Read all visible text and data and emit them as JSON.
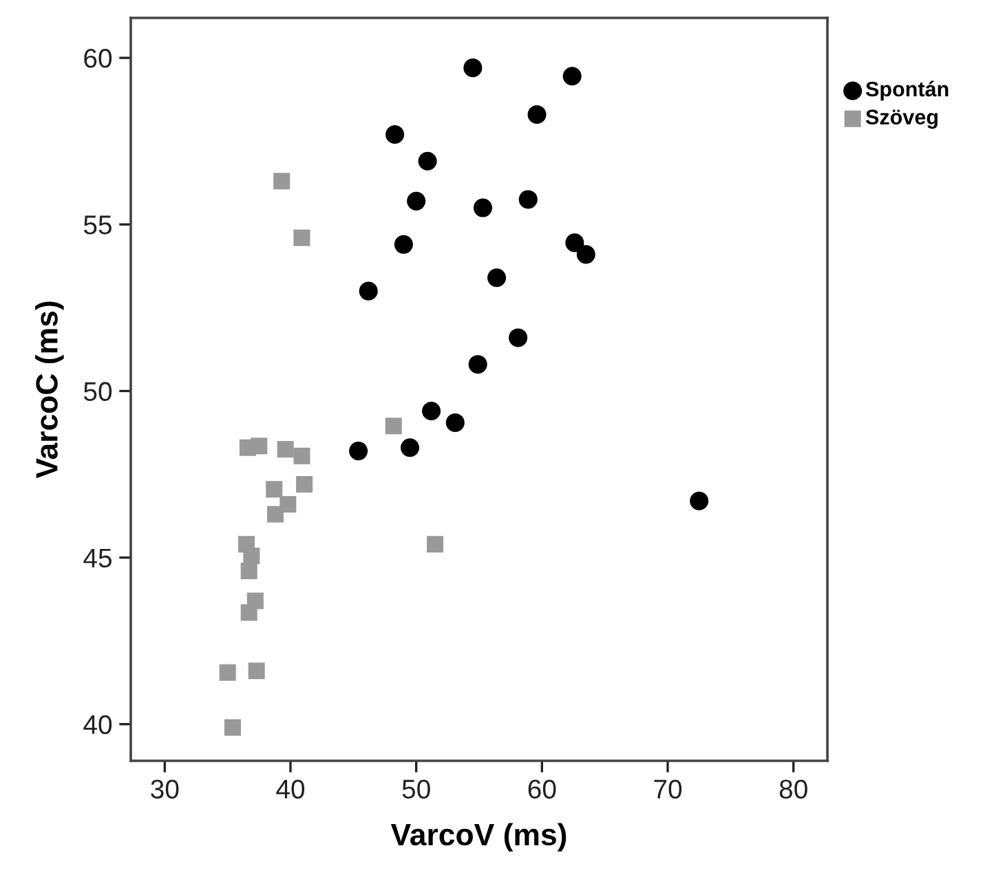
{
  "chart_data": {
    "type": "scatter",
    "xlabel": "VarcoV (ms)",
    "ylabel": "VarcoC (ms)",
    "xlim": [
      27.3,
      82.7
    ],
    "ylim": [
      38.9,
      61.2
    ],
    "xticks": [
      30,
      40,
      50,
      60,
      70,
      80
    ],
    "yticks": [
      40,
      45,
      50,
      55,
      60
    ],
    "grid": false,
    "legend": "top right",
    "series": [
      {
        "name": "Spontán",
        "color": "#000000",
        "marker": "circle",
        "x": [
          54.5,
          62.4,
          59.6,
          48.3,
          50.9,
          50.0,
          55.3,
          58.9,
          49.0,
          62.6,
          63.5,
          56.4,
          46.2,
          58.1,
          54.9,
          51.2,
          53.1,
          45.4,
          49.5,
          72.5
        ],
        "values": [
          59.7,
          59.45,
          58.3,
          57.7,
          56.9,
          55.7,
          55.5,
          55.75,
          54.4,
          54.45,
          54.1,
          53.4,
          53.0,
          51.6,
          50.8,
          49.4,
          49.05,
          48.2,
          48.3,
          46.7
        ]
      },
      {
        "name": "Szöveg",
        "color": "#999999",
        "marker": "square",
        "x": [
          39.3,
          40.9,
          48.2,
          36.6,
          37.5,
          39.6,
          40.9,
          38.7,
          41.1,
          39.8,
          38.8,
          36.5,
          36.9,
          36.7,
          51.5,
          37.2,
          36.7,
          35.0,
          37.3,
          35.4
        ],
        "values": [
          56.3,
          54.6,
          48.95,
          48.3,
          48.35,
          48.25,
          48.05,
          47.05,
          47.2,
          46.6,
          46.3,
          45.4,
          45.05,
          44.6,
          45.4,
          43.7,
          43.35,
          41.55,
          41.6,
          39.9
        ]
      }
    ]
  }
}
